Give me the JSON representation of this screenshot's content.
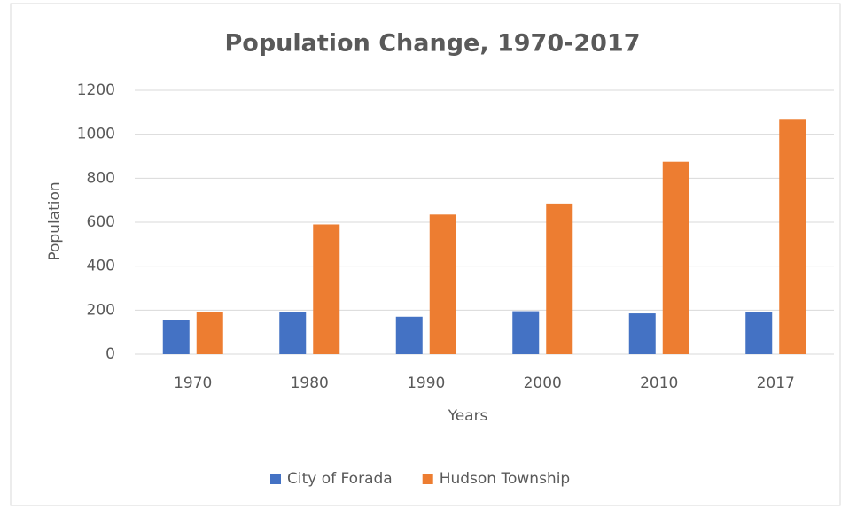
{
  "chart_data": {
    "type": "bar",
    "title": "Population Change, 1970-2017",
    "x_label": "Years",
    "y_label": "Population",
    "categories": [
      "1970",
      "1980",
      "1990",
      "2000",
      "2010",
      "2017"
    ],
    "series": [
      {
        "name": "City of Forada",
        "color": "#4472c4",
        "values": [
          155,
          190,
          170,
          195,
          185,
          190
        ]
      },
      {
        "name": "Hudson Township",
        "color": "#ed7d31",
        "values": [
          190,
          590,
          635,
          685,
          875,
          1070
        ]
      }
    ],
    "ylim": [
      0,
      1200
    ],
    "yticks": [
      0,
      200,
      400,
      600,
      800,
      1000,
      1200
    ],
    "grid": true,
    "legend": "bottom"
  }
}
